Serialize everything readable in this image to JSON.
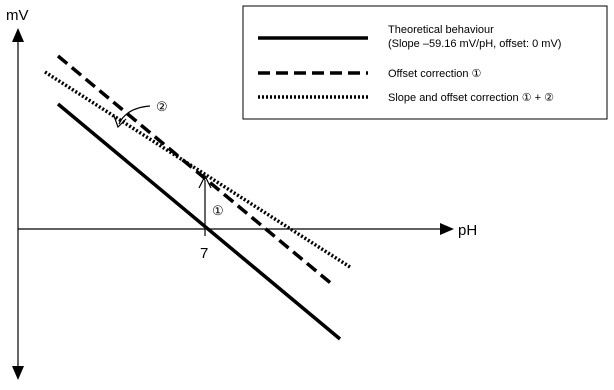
{
  "diagram": {
    "axes": {
      "y_label": "mV",
      "x_label": "pH",
      "x_tick": "7"
    },
    "markers": {
      "offset_arrow_label": "①",
      "slope_arrow_label": "②"
    },
    "legend": {
      "items": [
        {
          "style": "solid",
          "line1": "Theoretical behaviour",
          "line2": "(Slope –59.16 mV/pH, offset: 0 mV)"
        },
        {
          "style": "dashed",
          "line1": "Offset correction ①",
          "line2": ""
        },
        {
          "style": "dotted",
          "line1": "Slope and offset correction ① + ②",
          "line2": ""
        }
      ]
    }
  }
}
